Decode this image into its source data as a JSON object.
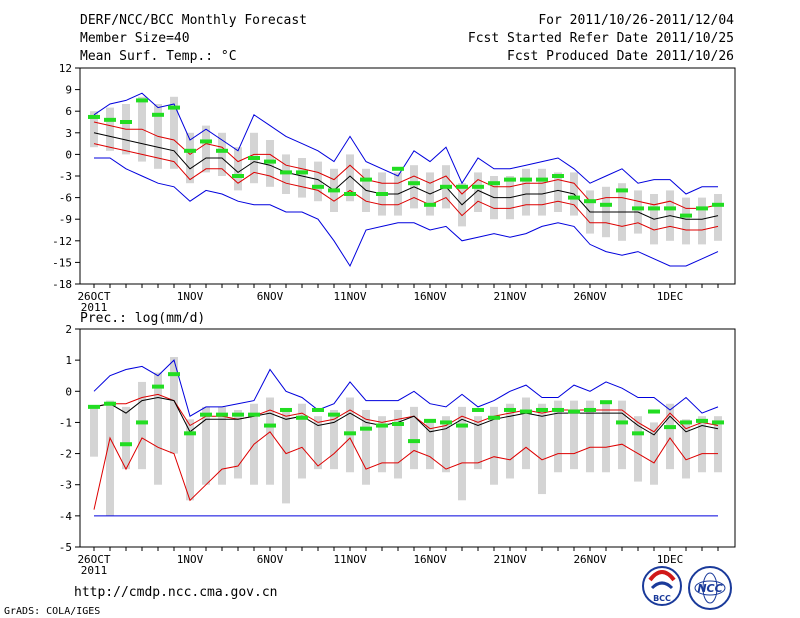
{
  "header": {
    "title": "DERF/NCC/BCC Monthly Forecast",
    "member_size": "Member Size=40",
    "variable": "Mean Surf. Temp.: °C",
    "period": "For 2011/10/26-2011/12/04",
    "started": "Fcst Started Refer Date 2011/10/25",
    "produced": "Fcst Produced Date 2011/10/26"
  },
  "x_axis": {
    "labels": [
      {
        "day": 0,
        "text": "26OCT"
      },
      {
        "day": 6,
        "text": "1NOV"
      },
      {
        "day": 11,
        "text": "6NOV"
      },
      {
        "day": 16,
        "text": "11NOV"
      },
      {
        "day": 21,
        "text": "16NOV"
      },
      {
        "day": 26,
        "text": "21NOV"
      },
      {
        "day": 31,
        "text": "26NOV"
      },
      {
        "day": 36,
        "text": "1DEC"
      }
    ],
    "year_label": "2011"
  },
  "footer": {
    "url": "http://cmdp.ncc.cma.gov.cn",
    "credit": "GrADS: COLA/IGES",
    "logo1": "BCC",
    "logo2": "NCC"
  },
  "colors": {
    "envelope": "#0000dd",
    "quartile": "#dd0000",
    "mean": "#000000",
    "box": "#d4d4d4",
    "obs": "#22dd22"
  },
  "chart_data": [
    {
      "type": "box-line",
      "name": "temperature",
      "title": "Mean Surf. Temp.: °C",
      "x_unit": "days since 2011-10-26",
      "ylim": [
        -18,
        12
      ],
      "yticks": [
        12,
        9,
        6,
        3,
        0,
        -3,
        -6,
        -9,
        -12,
        -15,
        -18
      ],
      "ytick_labels": [
        "12",
        "9",
        "6",
        "3",
        "0",
        "-3",
        "-6",
        "-9",
        "-12",
        "-15",
        "-18"
      ],
      "max": [
        5.5,
        7.0,
        7.5,
        8.5,
        6.5,
        7.0,
        2.0,
        3.5,
        2.0,
        0.5,
        5.5,
        4.0,
        2.5,
        1.5,
        0.5,
        -1.0,
        2.5,
        -1.0,
        -2.0,
        -3.0,
        0.5,
        -1.0,
        1.0,
        -4.0,
        -0.5,
        -2.0,
        -2.0,
        -1.5,
        -1.0,
        -0.5,
        -2.0,
        -4.0,
        -3.0,
        -2.0,
        -4.0,
        -3.5,
        -3.5,
        -5.5,
        -4.5,
        -4.5
      ],
      "q3": [
        4.5,
        4.0,
        3.5,
        3.5,
        2.5,
        2.0,
        0.0,
        1.5,
        1.0,
        -1.0,
        0.0,
        0.0,
        -1.5,
        -2.0,
        -2.5,
        -3.5,
        -1.5,
        -3.5,
        -4.0,
        -4.0,
        -3.0,
        -4.0,
        -3.0,
        -5.5,
        -3.5,
        -4.5,
        -4.5,
        -4.0,
        -4.0,
        -3.5,
        -4.0,
        -6.5,
        -6.0,
        -6.0,
        -6.5,
        -7.0,
        -6.5,
        -7.5,
        -7.5,
        -7.0
      ],
      "mean": [
        3.0,
        2.5,
        2.0,
        1.5,
        1.0,
        0.5,
        -2.0,
        -0.5,
        -0.5,
        -2.5,
        -1.0,
        -1.5,
        -2.5,
        -3.0,
        -3.5,
        -5.0,
        -3.0,
        -5.0,
        -5.5,
        -5.5,
        -4.5,
        -5.5,
        -4.5,
        -7.0,
        -5.0,
        -6.0,
        -6.0,
        -5.5,
        -5.5,
        -5.0,
        -5.5,
        -8.0,
        -8.0,
        -8.0,
        -8.0,
        -9.0,
        -8.5,
        -9.0,
        -9.0,
        -8.5
      ],
      "q1": [
        1.5,
        1.0,
        0.5,
        0.0,
        -0.5,
        -1.0,
        -3.5,
        -2.0,
        -2.0,
        -4.0,
        -2.5,
        -3.0,
        -4.0,
        -4.5,
        -5.0,
        -6.5,
        -5.0,
        -6.5,
        -7.0,
        -7.0,
        -6.0,
        -7.0,
        -6.0,
        -8.5,
        -6.5,
        -7.5,
        -7.5,
        -7.0,
        -7.0,
        -6.5,
        -7.0,
        -9.5,
        -9.5,
        -10.0,
        -9.5,
        -10.5,
        -10.0,
        -10.5,
        -10.5,
        -10.0
      ],
      "min": [
        -0.5,
        -0.5,
        -2.0,
        -3.0,
        -4.0,
        -4.5,
        -6.5,
        -5.0,
        -5.5,
        -6.5,
        -7.0,
        -7.0,
        -8.0,
        -8.0,
        -9.0,
        -12.0,
        -15.5,
        -10.5,
        -10.0,
        -9.5,
        -9.5,
        -10.5,
        -10.0,
        -12.0,
        -11.5,
        -11.0,
        -11.5,
        -11.0,
        -10.0,
        -9.5,
        -10.0,
        -12.5,
        -13.5,
        -14.0,
        -13.5,
        -14.5,
        -15.5,
        -15.5,
        -14.5,
        -13.5
      ],
      "box_high": [
        6.0,
        6.5,
        7.0,
        8.0,
        7.0,
        8.0,
        3.0,
        4.0,
        3.0,
        1.0,
        3.0,
        2.0,
        0.0,
        -0.5,
        -1.0,
        -2.0,
        0.0,
        -2.0,
        -2.5,
        -2.5,
        -1.5,
        -2.5,
        -1.5,
        -4.0,
        -2.5,
        -3.0,
        -3.0,
        -2.0,
        -2.0,
        -2.5,
        -2.5,
        -5.0,
        -4.5,
        -4.0,
        -5.0,
        -5.5,
        -5.0,
        -6.0,
        -6.0,
        -5.5
      ],
      "box_low": [
        1.0,
        0.5,
        0.0,
        -1.0,
        -2.0,
        -2.0,
        -4.0,
        -2.5,
        -3.0,
        -5.0,
        -4.0,
        -4.5,
        -5.5,
        -6.0,
        -6.5,
        -8.0,
        -6.5,
        -8.0,
        -8.5,
        -8.5,
        -7.5,
        -8.5,
        -7.5,
        -10.0,
        -8.0,
        -9.0,
        -9.0,
        -8.5,
        -8.5,
        -8.0,
        -8.5,
        -11.0,
        -11.5,
        -12.0,
        -11.0,
        -12.5,
        -12.0,
        -12.5,
        -12.5,
        -12.0
      ],
      "observed": [
        5.2,
        4.8,
        4.5,
        7.5,
        5.5,
        6.5,
        0.5,
        1.8,
        0.5,
        -3.0,
        -0.5,
        -1.0,
        -2.5,
        -2.5,
        -4.5,
        -5.0,
        -5.5,
        -3.5,
        -5.5,
        -2.0,
        -4.0,
        -7.0,
        -4.5,
        -4.5,
        -4.5,
        -4.0,
        -3.5,
        -3.5,
        -3.5,
        -3.0,
        -6.0,
        -6.5,
        -7.0,
        -5.0,
        -7.5,
        -7.5,
        -7.5,
        -8.5,
        -7.5,
        -7.0
      ]
    },
    {
      "type": "box-line",
      "name": "precipitation",
      "title": "Prec.: log(mm/d)",
      "x_unit": "days since 2011-10-26",
      "ylim": [
        -5,
        2
      ],
      "yticks": [
        2,
        1,
        0,
        -1,
        -2,
        -3,
        -4,
        -5
      ],
      "ytick_labels": [
        "2",
        "1",
        "0",
        "-1",
        "-2",
        "-3",
        "-4",
        "-5"
      ],
      "max": [
        0.0,
        0.5,
        0.7,
        0.8,
        0.5,
        1.0,
        -0.8,
        -0.5,
        -0.5,
        -0.4,
        -0.3,
        0.7,
        0.0,
        -0.2,
        -0.6,
        -0.4,
        0.3,
        -0.3,
        -0.3,
        -0.3,
        0.0,
        -0.4,
        -0.5,
        -0.1,
        -0.5,
        -0.3,
        0.0,
        0.2,
        -0.2,
        -0.2,
        0.2,
        0.0,
        0.3,
        0.1,
        -0.2,
        -0.2,
        -0.6,
        -0.2,
        -0.7,
        -0.5
      ],
      "q3": [
        -0.5,
        -0.4,
        -0.4,
        -0.2,
        -0.1,
        -0.3,
        -1.1,
        -0.8,
        -0.8,
        -0.9,
        -0.8,
        -0.6,
        -0.8,
        -0.7,
        -1.0,
        -0.9,
        -0.6,
        -0.9,
        -1.0,
        -0.9,
        -0.8,
        -1.2,
        -1.1,
        -0.8,
        -1.0,
        -0.8,
        -0.7,
        -0.6,
        -0.7,
        -0.6,
        -0.6,
        -0.6,
        -0.6,
        -0.6,
        -1.0,
        -1.3,
        -0.7,
        -1.2,
        -1.0,
        -1.1
      ],
      "mean": [
        -0.5,
        -0.4,
        -0.7,
        -0.3,
        -0.2,
        -0.3,
        -1.3,
        -0.9,
        -0.9,
        -0.9,
        -0.8,
        -0.7,
        -0.9,
        -0.8,
        -1.1,
        -1.0,
        -0.7,
        -1.0,
        -1.1,
        -1.0,
        -0.8,
        -1.3,
        -1.2,
        -0.9,
        -1.1,
        -0.9,
        -0.8,
        -0.7,
        -0.8,
        -0.7,
        -0.7,
        -0.7,
        -0.7,
        -0.7,
        -1.1,
        -1.4,
        -0.8,
        -1.3,
        -1.1,
        -1.2
      ],
      "q1": [
        -3.8,
        -1.5,
        -2.5,
        -1.5,
        -1.8,
        -2.0,
        -3.5,
        -3.0,
        -2.5,
        -2.4,
        -1.7,
        -1.3,
        -2.0,
        -1.8,
        -2.4,
        -2.0,
        -1.5,
        -2.5,
        -2.3,
        -2.3,
        -1.9,
        -2.1,
        -2.5,
        -2.3,
        -2.3,
        -2.1,
        -2.2,
        -1.8,
        -2.2,
        -2.0,
        -2.0,
        -1.8,
        -1.8,
        -1.7,
        -2.0,
        -2.3,
        -1.5,
        -2.2,
        -2.0,
        -2.0
      ],
      "min": [
        -4.0,
        -4.0,
        -4.0,
        -4.0,
        -4.0,
        -4.0,
        -4.0,
        -4.0,
        -4.0,
        -4.0,
        -4.0,
        -4.0,
        -4.0,
        -4.0,
        -4.0,
        -4.0,
        -4.0,
        -4.0,
        -4.0,
        -4.0,
        -4.0,
        -4.0,
        -4.0,
        -4.0,
        -4.0,
        -4.0,
        -4.0,
        -4.0,
        -4.0,
        -4.0,
        -4.0,
        -4.0,
        -4.0,
        -4.0,
        -4.0,
        -4.0,
        -4.0,
        -4.0,
        -4.0,
        -4.0
      ],
      "box_high": [
        -0.5,
        -0.3,
        -0.5,
        0.3,
        0.6,
        1.1,
        -0.9,
        -0.5,
        -0.5,
        -0.6,
        -0.4,
        -0.2,
        -0.6,
        -0.4,
        -0.8,
        -0.6,
        -0.2,
        -0.6,
        -0.8,
        -0.6,
        -0.5,
        -0.9,
        -0.8,
        -0.5,
        -0.8,
        -0.5,
        -0.4,
        -0.2,
        -0.4,
        -0.3,
        -0.3,
        -0.3,
        -0.3,
        -0.3,
        -0.8,
        -1.0,
        -0.4,
        -0.9,
        -0.8,
        -0.8
      ],
      "box_low": [
        -2.1,
        -4.0,
        -2.5,
        -2.5,
        -3.0,
        -2.0,
        -3.5,
        -3.0,
        -3.0,
        -2.8,
        -3.0,
        -3.0,
        -3.6,
        -2.8,
        -2.5,
        -2.5,
        -2.6,
        -3.0,
        -2.6,
        -2.8,
        -2.5,
        -2.5,
        -2.6,
        -3.5,
        -2.5,
        -3.0,
        -2.8,
        -2.5,
        -3.3,
        -2.6,
        -2.5,
        -2.6,
        -2.6,
        -2.5,
        -2.9,
        -3.0,
        -2.5,
        -2.8,
        -2.6,
        -2.6
      ],
      "observed": [
        -0.5,
        -0.4,
        -1.7,
        -1.0,
        0.15,
        0.55,
        -1.35,
        -0.75,
        -0.75,
        -0.75,
        -0.75,
        -1.1,
        -0.6,
        -0.85,
        -0.6,
        -0.75,
        -1.35,
        -1.2,
        -1.1,
        -1.05,
        -1.6,
        -0.95,
        -1.0,
        -1.1,
        -0.6,
        -0.85,
        -0.6,
        -0.65,
        -0.6,
        -0.6,
        -0.65,
        -0.6,
        -0.35,
        -1.0,
        -1.35,
        -0.65,
        -1.15,
        -1.0,
        -0.95,
        -1.0
      ]
    }
  ]
}
